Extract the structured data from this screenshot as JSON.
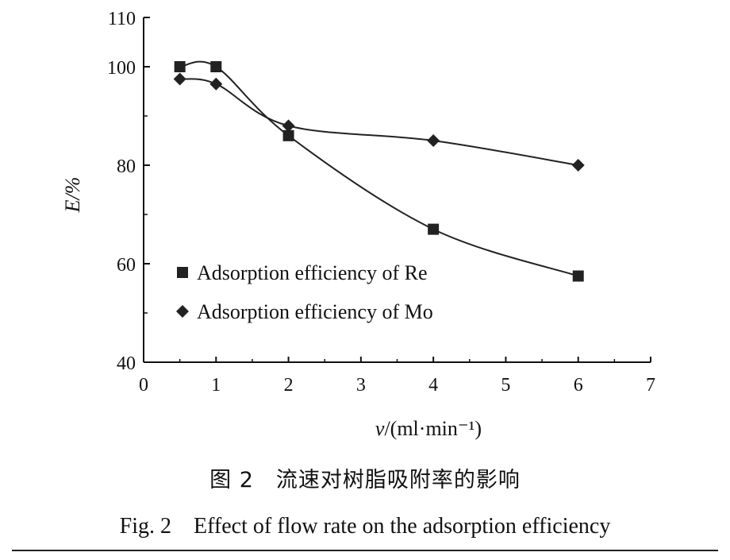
{
  "chart_data": {
    "type": "line",
    "x": [
      0.5,
      1,
      2,
      4,
      6
    ],
    "series": [
      {
        "name": "Adsorption efficiency of Re",
        "marker": "square",
        "values": [
          100,
          100,
          86,
          67,
          57.5
        ]
      },
      {
        "name": "Adsorption efficiency of Mo",
        "marker": "diamond",
        "values": [
          97.5,
          96.5,
          88,
          85,
          80
        ]
      }
    ],
    "xlim": [
      0,
      7
    ],
    "ylim": [
      40,
      110
    ],
    "xticks": [
      "0",
      "1",
      "2",
      "3",
      "4",
      "5",
      "6",
      "7"
    ],
    "yticks": [
      "40",
      "60",
      "80",
      "100",
      "110"
    ],
    "xlabel": "v/(ml·min⁻¹)",
    "ylabel": "E/%",
    "legend_position": "lower-left",
    "grid": false,
    "line_color": "#222222"
  },
  "caption": {
    "chinese": "图 2　流速对树脂吸附率的影响",
    "english": "Fig. 2　Effect of flow rate on the adsorption efficiency"
  }
}
